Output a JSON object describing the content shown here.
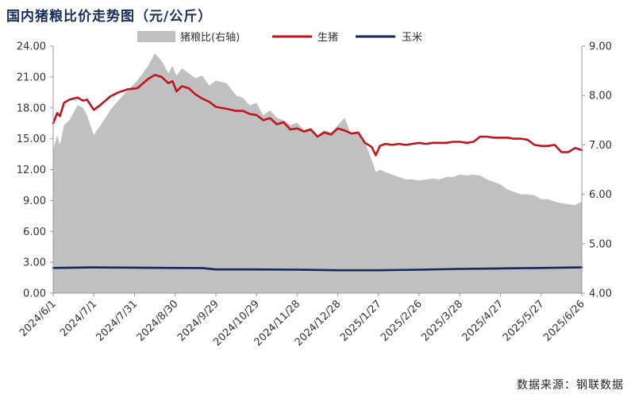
{
  "chart_data": {
    "type": "line",
    "title": "国内猪粮比价走势图（元/公斤）",
    "source": "数据来源：钢联数据",
    "x_labels": [
      "2024/6/1",
      "2024/7/1",
      "2024/7/31",
      "2024/8/30",
      "2024/9/29",
      "2024/10/29",
      "2024/11/28",
      "2024/12/28",
      "2025/1/27",
      "2025/2/26",
      "2025/3/28",
      "2025/4/27",
      "2025/5/27",
      "2025/6/26"
    ],
    "y_left": {
      "range": [
        0,
        24
      ],
      "ticks": [
        "0.00",
        "3.00",
        "6.00",
        "9.00",
        "12.00",
        "15.00",
        "18.00",
        "21.00",
        "24.00"
      ]
    },
    "y_right": {
      "range": [
        4,
        9
      ],
      "ticks": [
        "4.00",
        "5.00",
        "6.00",
        "7.00",
        "8.00",
        "9.00"
      ]
    },
    "grid": false,
    "legend_position": "top",
    "series": [
      {
        "name": "猪粮比(右轴)",
        "axis": "right",
        "kind": "area",
        "color": "#c0c0c0",
        "x": [
          0,
          3,
          5,
          8,
          12,
          18,
          22,
          25,
          30,
          35,
          42,
          48,
          55,
          62,
          70,
          75,
          80,
          85,
          88,
          91,
          95,
          100,
          105,
          110,
          115,
          120,
          128,
          135,
          140,
          145,
          150,
          155,
          160,
          165,
          170,
          175,
          180,
          185,
          190,
          195,
          200,
          205,
          210,
          215,
          220,
          225,
          230,
          235,
          238,
          241,
          245,
          250,
          255,
          260,
          265,
          270,
          275,
          280,
          285,
          290,
          295,
          300,
          305,
          310,
          315,
          320,
          325,
          330,
          335,
          340,
          345,
          350,
          355,
          360,
          365,
          370,
          375,
          380,
          385,
          390
        ],
        "values": [
          6.9,
          7.2,
          7.0,
          7.4,
          7.5,
          7.8,
          7.75,
          7.6,
          7.2,
          7.4,
          7.7,
          7.9,
          8.1,
          8.3,
          8.6,
          8.85,
          8.7,
          8.45,
          8.6,
          8.4,
          8.55,
          8.45,
          8.35,
          8.4,
          8.2,
          8.3,
          8.25,
          8.0,
          7.95,
          7.8,
          7.85,
          7.6,
          7.7,
          7.55,
          7.5,
          7.4,
          7.45,
          7.3,
          7.35,
          7.2,
          7.3,
          7.25,
          7.4,
          7.55,
          7.2,
          7.25,
          7.05,
          6.7,
          6.45,
          6.5,
          6.45,
          6.4,
          6.35,
          6.3,
          6.3,
          6.28,
          6.3,
          6.32,
          6.3,
          6.35,
          6.35,
          6.4,
          6.38,
          6.4,
          6.38,
          6.3,
          6.25,
          6.2,
          6.1,
          6.05,
          6.0,
          6.0,
          5.98,
          5.9,
          5.9,
          5.85,
          5.82,
          5.8,
          5.78,
          5.85
        ]
      },
      {
        "name": "生猪",
        "axis": "left",
        "kind": "line",
        "color": "#c0141e",
        "x": [
          0,
          3,
          5,
          8,
          12,
          18,
          22,
          25,
          30,
          35,
          42,
          48,
          55,
          62,
          70,
          75,
          80,
          85,
          88,
          91,
          95,
          100,
          105,
          110,
          115,
          120,
          128,
          135,
          140,
          145,
          150,
          155,
          160,
          165,
          170,
          175,
          180,
          185,
          190,
          195,
          200,
          205,
          210,
          215,
          220,
          225,
          230,
          235,
          238,
          241,
          245,
          250,
          255,
          260,
          265,
          270,
          275,
          280,
          285,
          290,
          295,
          300,
          305,
          310,
          315,
          320,
          325,
          330,
          335,
          340,
          345,
          350,
          355,
          360,
          365,
          370,
          375,
          380,
          385,
          390
        ],
        "values": [
          16.5,
          17.5,
          17.2,
          18.5,
          18.8,
          19.0,
          18.7,
          18.8,
          17.8,
          18.3,
          19.1,
          19.5,
          19.8,
          19.9,
          20.8,
          21.2,
          21.0,
          20.4,
          20.6,
          19.6,
          20.1,
          19.9,
          19.3,
          18.9,
          18.6,
          18.1,
          17.9,
          17.7,
          17.7,
          17.4,
          17.3,
          16.8,
          17.0,
          16.4,
          16.6,
          15.9,
          16.0,
          15.7,
          15.9,
          15.2,
          15.6,
          15.4,
          16.0,
          15.8,
          15.5,
          15.6,
          14.6,
          14.2,
          13.4,
          14.3,
          14.5,
          14.4,
          14.5,
          14.4,
          14.5,
          14.6,
          14.5,
          14.6,
          14.6,
          14.6,
          14.7,
          14.7,
          14.6,
          14.7,
          15.2,
          15.2,
          15.1,
          15.1,
          15.1,
          15.0,
          15.0,
          14.9,
          14.4,
          14.3,
          14.3,
          14.4,
          13.7,
          13.7,
          14.1,
          13.9
        ]
      },
      {
        "name": "玉米",
        "axis": "left",
        "kind": "line",
        "color": "#14285a",
        "x": [
          0,
          30,
          60,
          90,
          110,
          120,
          150,
          180,
          210,
          240,
          270,
          300,
          330,
          360,
          390
        ],
        "values": [
          2.45,
          2.5,
          2.48,
          2.45,
          2.44,
          2.3,
          2.3,
          2.28,
          2.22,
          2.22,
          2.28,
          2.35,
          2.4,
          2.45,
          2.5
        ]
      }
    ]
  }
}
